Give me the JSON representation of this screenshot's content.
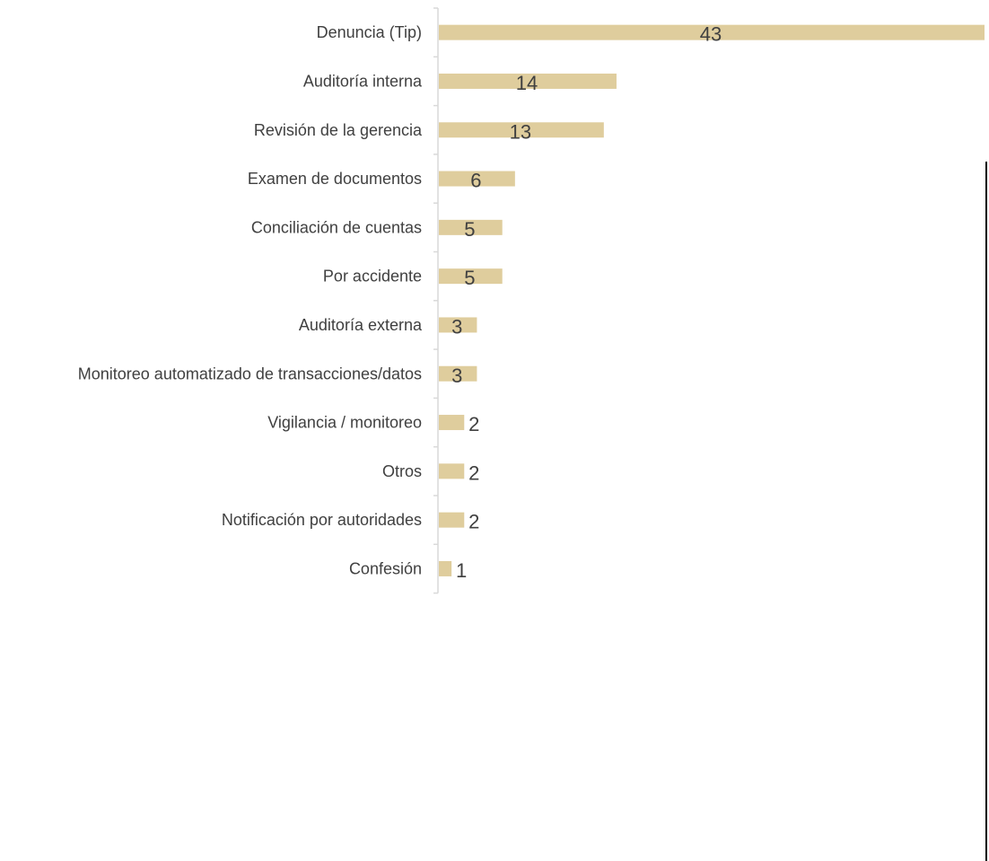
{
  "chart_data": {
    "type": "bar",
    "orientation": "horizontal",
    "categories": [
      "Denuncia (Tip)",
      "Auditoría interna",
      "Revisión de la gerencia",
      "Examen de documentos",
      "Conciliación de cuentas",
      "Por accidente",
      "Auditoría externa",
      "Monitoreo automatizado de transacciones/datos",
      "Vigilancia / monitoreo",
      "Otros",
      "Notificación por autoridades",
      "Confesión"
    ],
    "values": [
      43,
      14,
      13,
      6,
      5,
      5,
      3,
      3,
      2,
      2,
      2,
      1
    ],
    "data_labels": [
      "43",
      "14",
      "13",
      "6",
      "5",
      "5",
      "3",
      "3",
      "2",
      "2",
      "2",
      "1"
    ],
    "title": "",
    "xlabel": "",
    "ylabel": "",
    "xlim": [
      0,
      43
    ],
    "grid": false,
    "legend": "none",
    "bar_color": "#dfcd9d",
    "label_color": "#404040",
    "axis_color": "#d9d9d9"
  }
}
